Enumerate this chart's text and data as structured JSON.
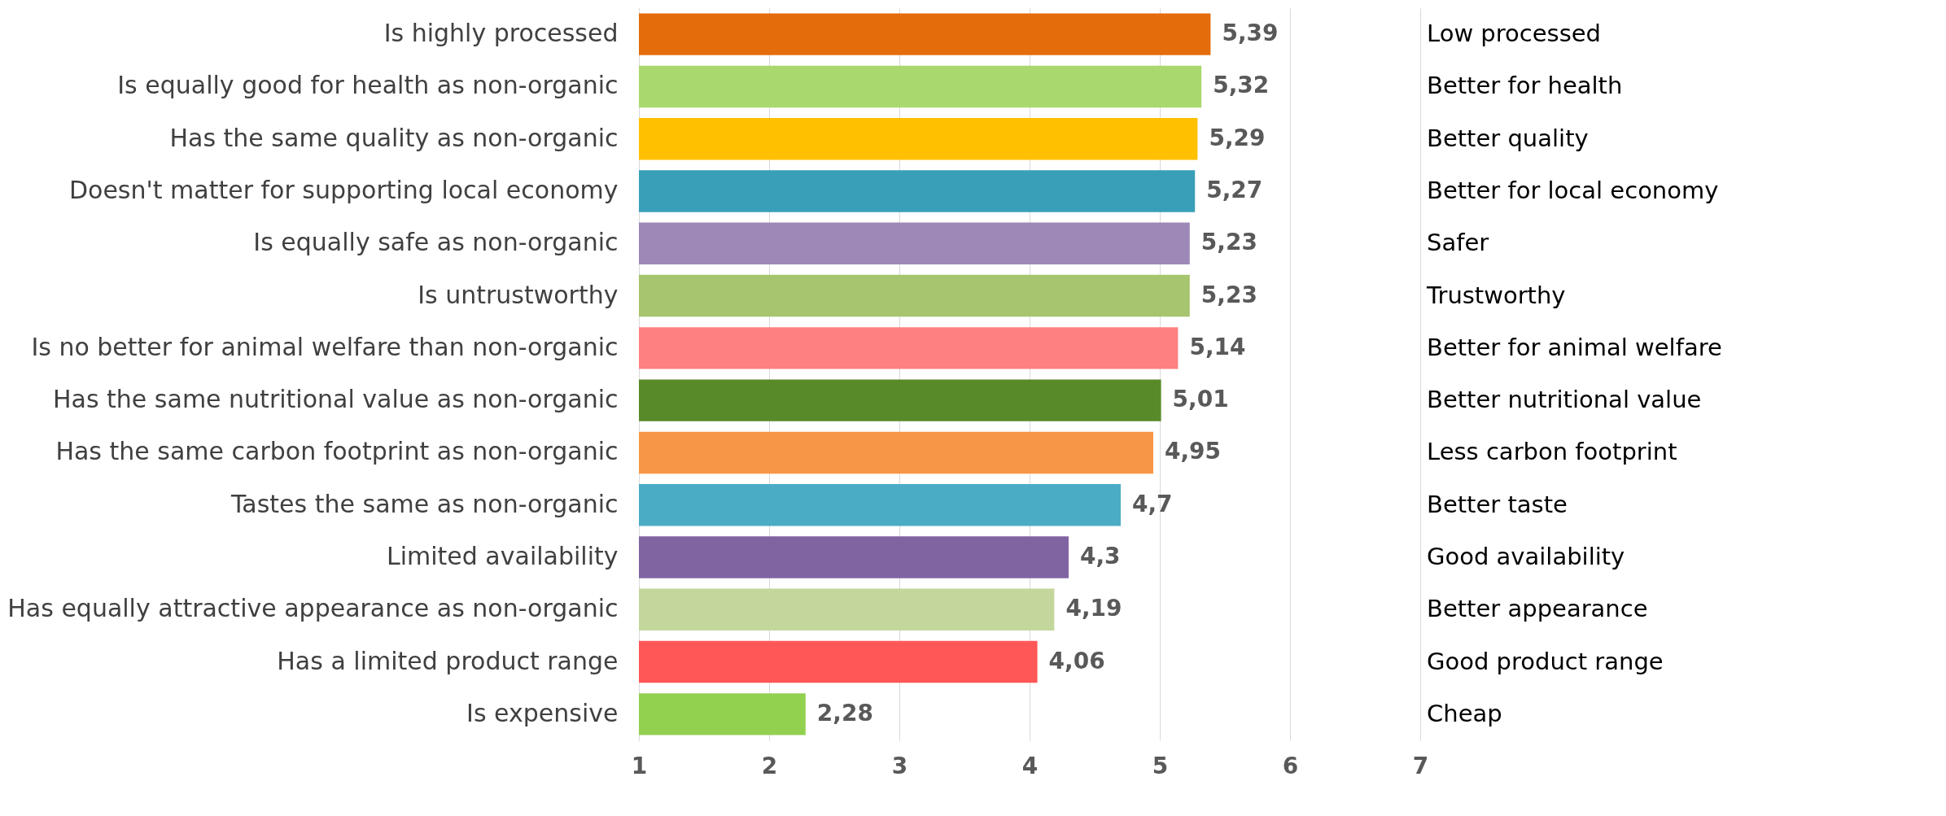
{
  "chart_data": {
    "type": "bar",
    "orientation": "horizontal",
    "categories": [
      "Is highly processed",
      "Is equally good for health as non-organic",
      "Has the same quality as non-organic",
      "Doesn't matter for supporting local economy",
      "Is equally safe as non-organic",
      "Is untrustworthy",
      "Is no better for animal welfare than non-organic",
      "Has the same nutritional value as non-organic",
      "Has the same carbon footprint as non-organic",
      "Tastes the same as non-organic",
      "Limited availability",
      "Has equally attractive appearance as non-organic",
      "Has a limited product range",
      "Is expensive"
    ],
    "y2_categories": [
      "Low processed",
      "Better for health",
      "Better quality",
      "Better for local economy",
      "Safer",
      "Trustworthy",
      "Better for animal welfare",
      "Better nutritional value",
      "Less carbon footprint",
      "Better taste",
      "Good availability",
      "Better appearance",
      "Good product range",
      "Cheap"
    ],
    "values": [
      5.39,
      5.32,
      5.29,
      5.27,
      5.23,
      5.23,
      5.14,
      5.01,
      4.95,
      4.7,
      4.3,
      4.19,
      4.06,
      2.28
    ],
    "value_labels": [
      "5,39",
      "5,32",
      "5,29",
      "5,27",
      "5,23",
      "5,23",
      "5,14",
      "5,01",
      "4,95",
      "4,7",
      "4,3",
      "4,19",
      "4,06",
      "2,28"
    ],
    "colors": [
      "#e46c0a",
      "#a9d86e",
      "#ffc000",
      "#399fb8",
      "#9e88b8",
      "#a7c46e",
      "#ff8080",
      "#588a2a",
      "#f79646",
      "#4bacc6",
      "#8064a2",
      "#c3d69b",
      "#ff5757",
      "#92d050"
    ],
    "xlim": [
      1,
      7
    ],
    "xticks": [
      1,
      2,
      3,
      4,
      5,
      6,
      7
    ],
    "grid": "x",
    "legend": false
  }
}
